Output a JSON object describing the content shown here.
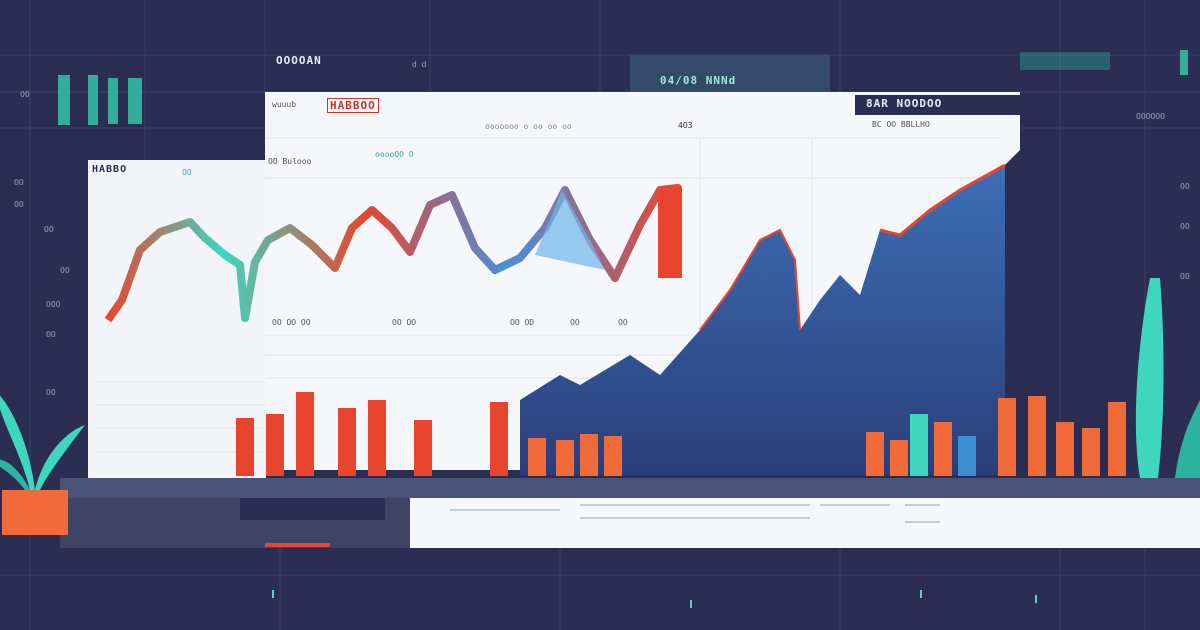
{
  "top_bar": {
    "label_left": "OOOOAN",
    "label_center": "04/08 NNNd",
    "label_right_small": "d d"
  },
  "main_panel": {
    "title": "HABBOO",
    "subtitle": "wuuub",
    "header_dark_label": "8AR NOODOO",
    "header_caption": "BC OO BBLLHO",
    "mid_caption": "ooooooo o oo oo oo",
    "value_label": "4O3",
    "legend_label": "ooooOO O",
    "series_label": "OO Bulooo",
    "axis_labels": [
      "OO OO OO",
      "OO OO",
      "OO OD",
      "OO",
      "OO"
    ]
  },
  "left_panel": {
    "title": "HABBO",
    "tag": "OO"
  },
  "left_axis": {
    "labels": [
      "OO",
      "OO",
      "OO",
      "OO",
      "OO",
      "OOO",
      "OO",
      "OO"
    ]
  },
  "right_axis": {
    "labels": [
      "OOOOOO",
      "OO",
      "OO",
      "OO"
    ]
  },
  "colors": {
    "background": "#2b2e52",
    "panel": "#f4f6fa",
    "accent_red": "#e8452f",
    "accent_orange": "#f06a3a",
    "accent_teal": "#3fd6c0",
    "accent_blue": "#3c6fb5"
  }
}
